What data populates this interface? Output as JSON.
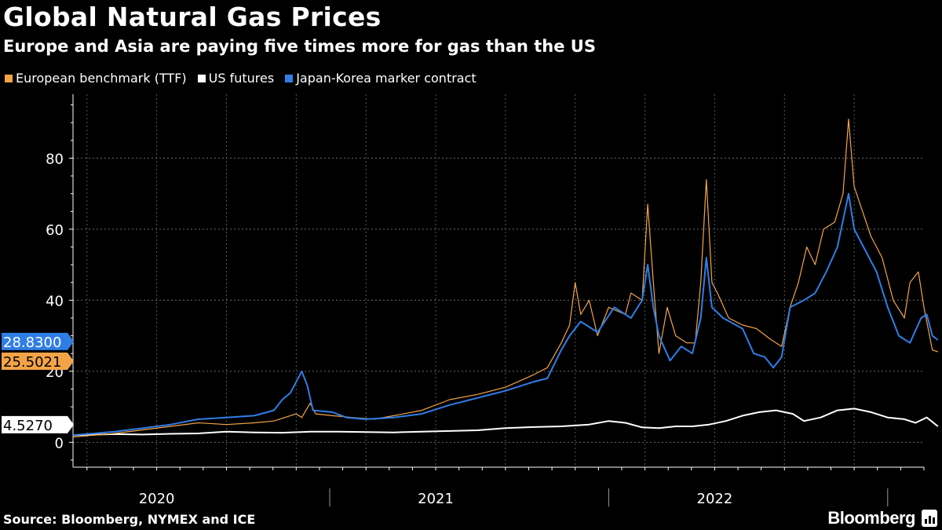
{
  "title": "Global Natural Gas Prices",
  "subtitle": "Europe and Asia are paying five times more for gas than the US",
  "source": "Source: Bloomberg, NYMEX and ICE",
  "brand": "Bloomberg",
  "chart_data": {
    "type": "line",
    "title": "Global Natural Gas Prices",
    "subtitle": "Europe and Asia are paying five times more for gas than the US",
    "xlabel": "",
    "ylabel": "",
    "xlim": [
      2019.7,
      2022.75
    ],
    "ylim": [
      -7,
      98
    ],
    "yticks": [
      0,
      20,
      40,
      60,
      80
    ],
    "ytick_labels": [
      "0",
      "20",
      "40",
      "60",
      "80"
    ],
    "year_labels": [
      {
        "label": "2020",
        "x": 2020.0
      },
      {
        "label": "2021",
        "x": 2021.0
      },
      {
        "label": "2022",
        "x": 2022.0
      }
    ],
    "year_dividers": [
      2020.62,
      2021.62,
      2022.62
    ],
    "grid": true,
    "legend_position": "top-left",
    "series": [
      {
        "name": "European benchmark (TTF)",
        "color": "#f4a447",
        "last_value": "25.5021",
        "points": [
          [
            2019.7,
            1.5
          ],
          [
            2019.85,
            2.5
          ],
          [
            2019.95,
            3.5
          ],
          [
            2020.05,
            4.5
          ],
          [
            2020.15,
            5.5
          ],
          [
            2020.25,
            5.0
          ],
          [
            2020.35,
            5.5
          ],
          [
            2020.42,
            6.0
          ],
          [
            2020.5,
            8.0
          ],
          [
            2020.52,
            7.0
          ],
          [
            2020.55,
            11.0
          ],
          [
            2020.57,
            8.0
          ],
          [
            2020.63,
            7.5
          ],
          [
            2020.7,
            7.0
          ],
          [
            2020.78,
            6.5
          ],
          [
            2020.85,
            7.5
          ],
          [
            2020.95,
            9.0
          ],
          [
            2021.05,
            12.0
          ],
          [
            2021.15,
            13.5
          ],
          [
            2021.25,
            15.5
          ],
          [
            2021.35,
            19.0
          ],
          [
            2021.4,
            21.0
          ],
          [
            2021.45,
            28.0
          ],
          [
            2021.48,
            33.0
          ],
          [
            2021.5,
            45.0
          ],
          [
            2021.52,
            36.0
          ],
          [
            2021.55,
            40.0
          ],
          [
            2021.58,
            30.0
          ],
          [
            2021.62,
            38.0
          ],
          [
            2021.68,
            36.0
          ],
          [
            2021.7,
            42.0
          ],
          [
            2021.74,
            40.0
          ],
          [
            2021.76,
            67.0
          ],
          [
            2021.78,
            45.0
          ],
          [
            2021.8,
            25.0
          ],
          [
            2021.83,
            38.0
          ],
          [
            2021.86,
            30.0
          ],
          [
            2021.9,
            28.0
          ],
          [
            2021.93,
            28.0
          ],
          [
            2021.95,
            45.0
          ],
          [
            2021.97,
            74.0
          ],
          [
            2021.99,
            45.0
          ],
          [
            2022.01,
            42.0
          ],
          [
            2022.05,
            35.0
          ],
          [
            2022.1,
            33.0
          ],
          [
            2022.15,
            32.0
          ],
          [
            2022.2,
            29.0
          ],
          [
            2022.24,
            27.0
          ],
          [
            2022.27,
            38.0
          ],
          [
            2022.3,
            45.0
          ],
          [
            2022.33,
            55.0
          ],
          [
            2022.36,
            50.0
          ],
          [
            2022.39,
            60.0
          ],
          [
            2022.43,
            62.0
          ],
          [
            2022.46,
            70.0
          ],
          [
            2022.48,
            91.0
          ],
          [
            2022.5,
            72.0
          ],
          [
            2022.53,
            65.0
          ],
          [
            2022.56,
            58.0
          ],
          [
            2022.6,
            52.0
          ],
          [
            2022.64,
            40.0
          ],
          [
            2022.68,
            35.0
          ],
          [
            2022.7,
            45.0
          ],
          [
            2022.73,
            48.0
          ],
          [
            2022.75,
            38.0
          ],
          [
            2022.78,
            26.0
          ],
          [
            2022.8,
            25.5
          ]
        ]
      },
      {
        "name": "US futures",
        "color": "#ffffff",
        "last_value": "4.5270",
        "points": [
          [
            2019.7,
            2.0
          ],
          [
            2019.85,
            2.3
          ],
          [
            2019.95,
            2.2
          ],
          [
            2020.05,
            2.4
          ],
          [
            2020.15,
            2.5
          ],
          [
            2020.25,
            3.0
          ],
          [
            2020.35,
            2.8
          ],
          [
            2020.45,
            2.7
          ],
          [
            2020.55,
            3.0
          ],
          [
            2020.65,
            3.0
          ],
          [
            2020.75,
            2.9
          ],
          [
            2020.85,
            2.8
          ],
          [
            2020.95,
            3.0
          ],
          [
            2021.05,
            3.2
          ],
          [
            2021.15,
            3.4
          ],
          [
            2021.25,
            4.0
          ],
          [
            2021.35,
            4.3
          ],
          [
            2021.45,
            4.5
          ],
          [
            2021.55,
            5.0
          ],
          [
            2021.62,
            6.0
          ],
          [
            2021.68,
            5.5
          ],
          [
            2021.74,
            4.2
          ],
          [
            2021.8,
            4.0
          ],
          [
            2021.86,
            4.5
          ],
          [
            2021.92,
            4.5
          ],
          [
            2021.98,
            5.0
          ],
          [
            2022.04,
            6.0
          ],
          [
            2022.1,
            7.5
          ],
          [
            2022.16,
            8.5
          ],
          [
            2022.22,
            9.0
          ],
          [
            2022.28,
            8.0
          ],
          [
            2022.32,
            6.0
          ],
          [
            2022.38,
            7.0
          ],
          [
            2022.44,
            9.0
          ],
          [
            2022.5,
            9.5
          ],
          [
            2022.56,
            8.5
          ],
          [
            2022.62,
            7.0
          ],
          [
            2022.68,
            6.5
          ],
          [
            2022.72,
            5.5
          ],
          [
            2022.76,
            7.0
          ],
          [
            2022.8,
            4.5
          ]
        ]
      },
      {
        "name": "Japan-Korea marker contract",
        "color": "#2f7ee6",
        "last_value": "28.8300",
        "points": [
          [
            2019.7,
            2.0
          ],
          [
            2019.85,
            3.0
          ],
          [
            2019.95,
            4.0
          ],
          [
            2020.05,
            5.0
          ],
          [
            2020.15,
            6.5
          ],
          [
            2020.25,
            7.0
          ],
          [
            2020.35,
            7.5
          ],
          [
            2020.42,
            9.0
          ],
          [
            2020.45,
            12.0
          ],
          [
            2020.48,
            14.0
          ],
          [
            2020.52,
            20.0
          ],
          [
            2020.54,
            16.0
          ],
          [
            2020.56,
            9.0
          ],
          [
            2020.63,
            8.5
          ],
          [
            2020.68,
            7.0
          ],
          [
            2020.75,
            6.5
          ],
          [
            2020.85,
            7.0
          ],
          [
            2020.95,
            8.0
          ],
          [
            2021.05,
            10.5
          ],
          [
            2021.15,
            12.5
          ],
          [
            2021.25,
            14.5
          ],
          [
            2021.35,
            17.0
          ],
          [
            2021.4,
            18.0
          ],
          [
            2021.45,
            26.0
          ],
          [
            2021.48,
            30.0
          ],
          [
            2021.52,
            34.0
          ],
          [
            2021.58,
            31.0
          ],
          [
            2021.64,
            38.0
          ],
          [
            2021.7,
            35.0
          ],
          [
            2021.74,
            40.0
          ],
          [
            2021.76,
            50.0
          ],
          [
            2021.78,
            38.0
          ],
          [
            2021.8,
            30.0
          ],
          [
            2021.84,
            23.0
          ],
          [
            2021.88,
            27.0
          ],
          [
            2021.92,
            25.0
          ],
          [
            2021.95,
            35.0
          ],
          [
            2021.97,
            52.0
          ],
          [
            2021.99,
            38.0
          ],
          [
            2022.03,
            35.0
          ],
          [
            2022.1,
            32.0
          ],
          [
            2022.14,
            25.0
          ],
          [
            2022.18,
            24.0
          ],
          [
            2022.21,
            21.0
          ],
          [
            2022.24,
            24.0
          ],
          [
            2022.27,
            38.0
          ],
          [
            2022.32,
            40.0
          ],
          [
            2022.36,
            42.0
          ],
          [
            2022.4,
            48.0
          ],
          [
            2022.44,
            55.0
          ],
          [
            2022.48,
            70.0
          ],
          [
            2022.5,
            60.0
          ],
          [
            2022.54,
            54.0
          ],
          [
            2022.58,
            48.0
          ],
          [
            2022.62,
            38.0
          ],
          [
            2022.66,
            30.0
          ],
          [
            2022.7,
            28.0
          ],
          [
            2022.74,
            35.0
          ],
          [
            2022.76,
            36.0
          ],
          [
            2022.78,
            30.0
          ],
          [
            2022.8,
            28.8
          ]
        ]
      }
    ]
  }
}
